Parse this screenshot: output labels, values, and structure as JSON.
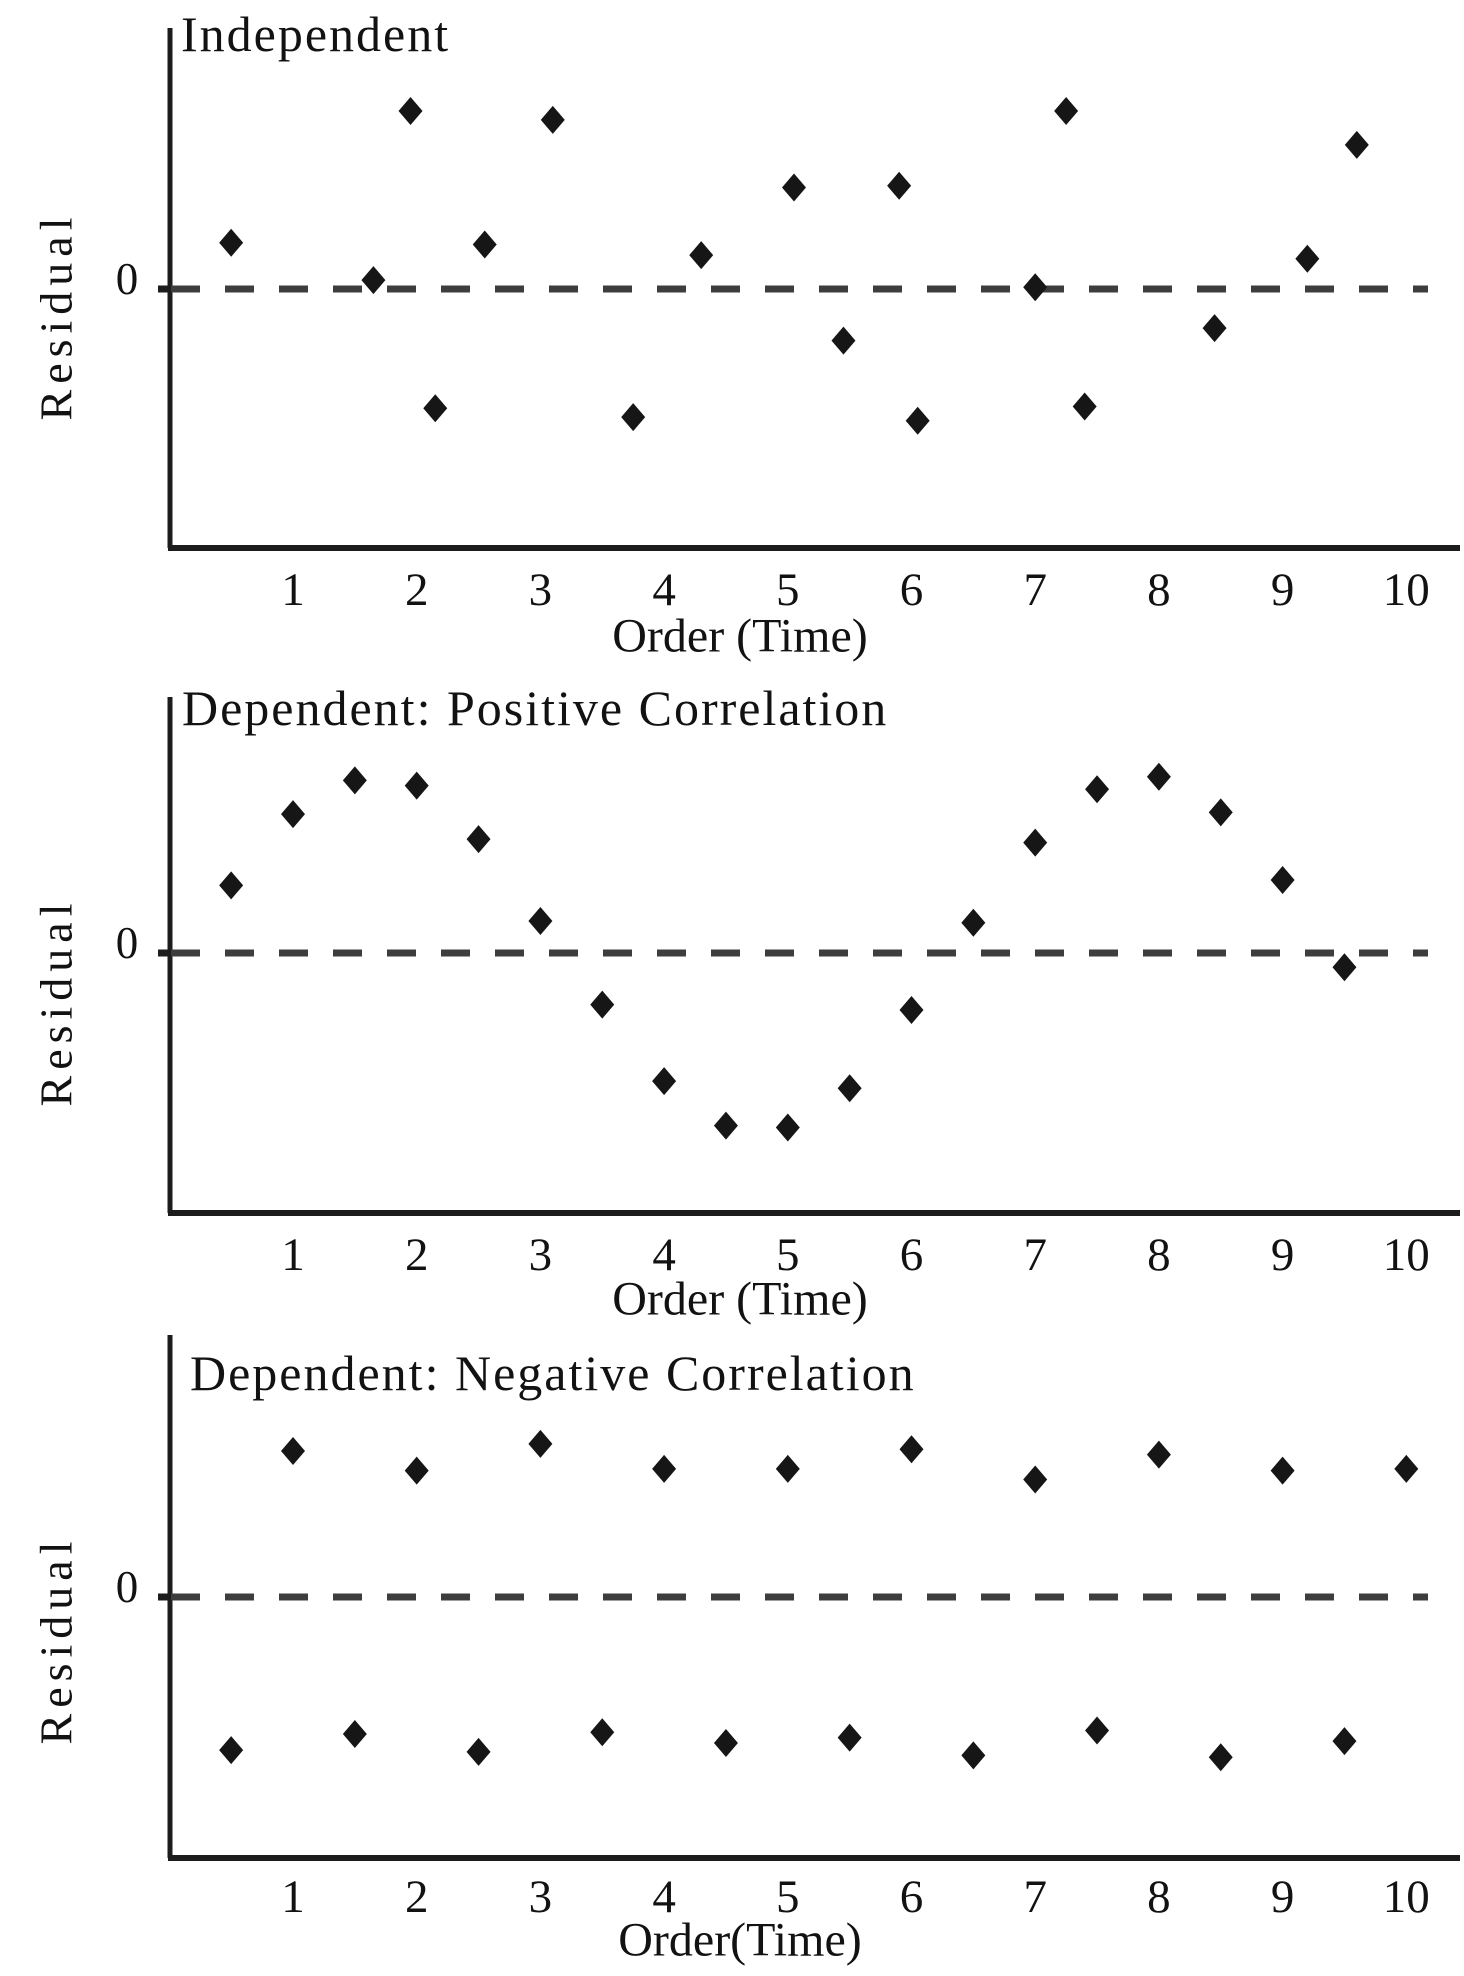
{
  "figure": {
    "description": "Three residual-versus-order scatter plots",
    "colors": {
      "background": "#ffffff",
      "point": "#161616",
      "axis": "#1c1c1c",
      "dash": "#3d3d3d",
      "text": "#121212"
    }
  },
  "chart_data": [
    {
      "type": "scatter",
      "title": "Independent",
      "xlabel": "Order (Time)",
      "ylabel": "Residual",
      "zero_label": "0",
      "x_ticks": [
        1,
        2,
        3,
        4,
        5,
        6,
        7,
        8,
        9,
        10
      ],
      "xlim": [
        0,
        10.5
      ],
      "ylim": [
        -1.46,
        1.47
      ],
      "grid": false,
      "legend": "none",
      "zero_reference_line": "dashed",
      "marker": "diamond",
      "points": [
        [
          0.5,
          0.26
        ],
        [
          1.65,
          0.05
        ],
        [
          1.95,
          1.0
        ],
        [
          2.15,
          -0.67
        ],
        [
          2.55,
          0.25
        ],
        [
          3.1,
          0.95
        ],
        [
          3.75,
          -0.72
        ],
        [
          4.3,
          0.19
        ],
        [
          5.05,
          0.57
        ],
        [
          5.45,
          -0.29
        ],
        [
          5.9,
          0.58
        ],
        [
          6.05,
          -0.74
        ],
        [
          7.0,
          0.01
        ],
        [
          7.25,
          1.0
        ],
        [
          7.4,
          -0.66
        ],
        [
          8.45,
          -0.22
        ],
        [
          9.2,
          0.17
        ],
        [
          9.6,
          0.81
        ]
      ]
    },
    {
      "type": "scatter",
      "title": "Dependent: Positive Correlation",
      "xlabel": "Order (Time)",
      "ylabel": "Residual",
      "zero_label": "0",
      "x_ticks": [
        1,
        2,
        3,
        4,
        5,
        6,
        7,
        8,
        9,
        10
      ],
      "xlim": [
        0,
        10.5
      ],
      "ylim": [
        -1.47,
        1.44
      ],
      "grid": false,
      "legend": "none",
      "zero_reference_line": "dashed",
      "marker": "diamond",
      "points": [
        [
          0.5,
          0.38
        ],
        [
          1.0,
          0.78
        ],
        [
          1.5,
          0.97
        ],
        [
          2.0,
          0.94
        ],
        [
          2.5,
          0.64
        ],
        [
          3.0,
          0.18
        ],
        [
          3.5,
          -0.29
        ],
        [
          4.0,
          -0.72
        ],
        [
          4.5,
          -0.97
        ],
        [
          5.0,
          -0.98
        ],
        [
          5.5,
          -0.76
        ],
        [
          6.0,
          -0.32
        ],
        [
          6.5,
          0.17
        ],
        [
          7.0,
          0.62
        ],
        [
          7.5,
          0.92
        ],
        [
          8.0,
          0.99
        ],
        [
          8.5,
          0.79
        ],
        [
          9.0,
          0.41
        ],
        [
          9.5,
          -0.08
        ]
      ]
    },
    {
      "type": "scatter",
      "title": "Dependent: Negative Correlation",
      "xlabel": "Order(Time)",
      "ylabel": "Residual",
      "zero_label": "0",
      "x_ticks": [
        1,
        2,
        3,
        4,
        5,
        6,
        7,
        8,
        9,
        10
      ],
      "xlim": [
        0,
        10.5
      ],
      "ylim": [
        -1.47,
        1.47
      ],
      "grid": false,
      "legend": "none",
      "zero_reference_line": "dashed",
      "marker": "diamond",
      "points": [
        [
          0.5,
          -0.86
        ],
        [
          1.0,
          0.82
        ],
        [
          1.5,
          -0.77
        ],
        [
          2.0,
          0.71
        ],
        [
          2.5,
          -0.87
        ],
        [
          3.0,
          0.86
        ],
        [
          3.5,
          -0.76
        ],
        [
          4.0,
          0.72
        ],
        [
          4.5,
          -0.82
        ],
        [
          5.0,
          0.72
        ],
        [
          5.5,
          -0.79
        ],
        [
          6.0,
          0.83
        ],
        [
          6.5,
          -0.89
        ],
        [
          7.0,
          0.66
        ],
        [
          7.5,
          -0.75
        ],
        [
          8.0,
          0.8
        ],
        [
          8.5,
          -0.9
        ],
        [
          9.0,
          0.71
        ],
        [
          9.5,
          -0.81
        ],
        [
          10.0,
          0.72
        ]
      ]
    }
  ]
}
